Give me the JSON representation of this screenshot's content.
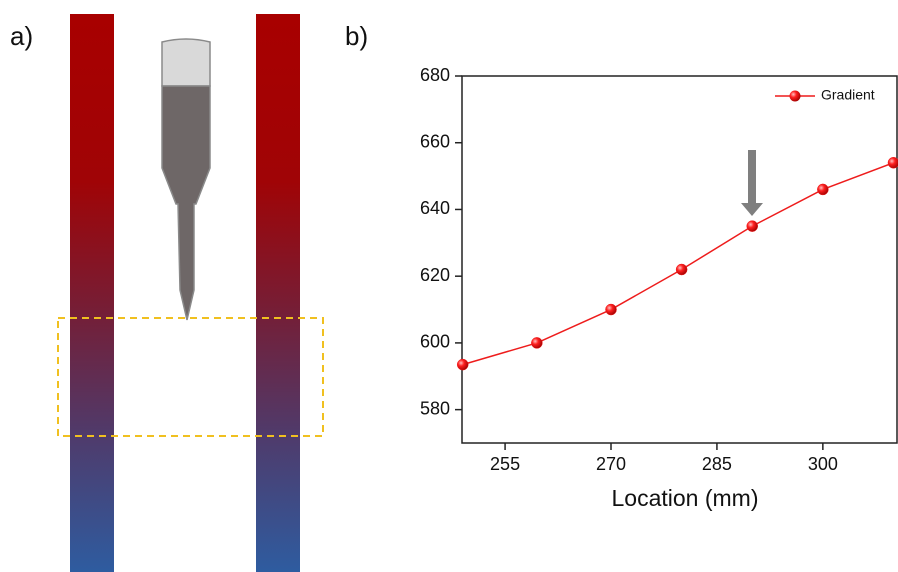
{
  "panels": {
    "a": "a)",
    "b": "b)"
  },
  "chart_data": {
    "type": "line",
    "xlabel": "Location (mm)",
    "x": [
      249,
      259.5,
      270,
      280,
      290,
      300,
      310
    ],
    "series": [
      {
        "name": "Gradient",
        "color": "#ee1c1c",
        "values": [
          593.5,
          600,
          610,
          622,
          635,
          646,
          654
        ]
      }
    ],
    "xlim": [
      248.9,
      310.5
    ],
    "xticks": [
      255,
      270,
      285,
      300
    ],
    "ylim": [
      570,
      680
    ],
    "yticks": [
      580,
      600,
      620,
      640,
      660,
      680
    ],
    "legend": "upper right",
    "grid": false
  }
}
